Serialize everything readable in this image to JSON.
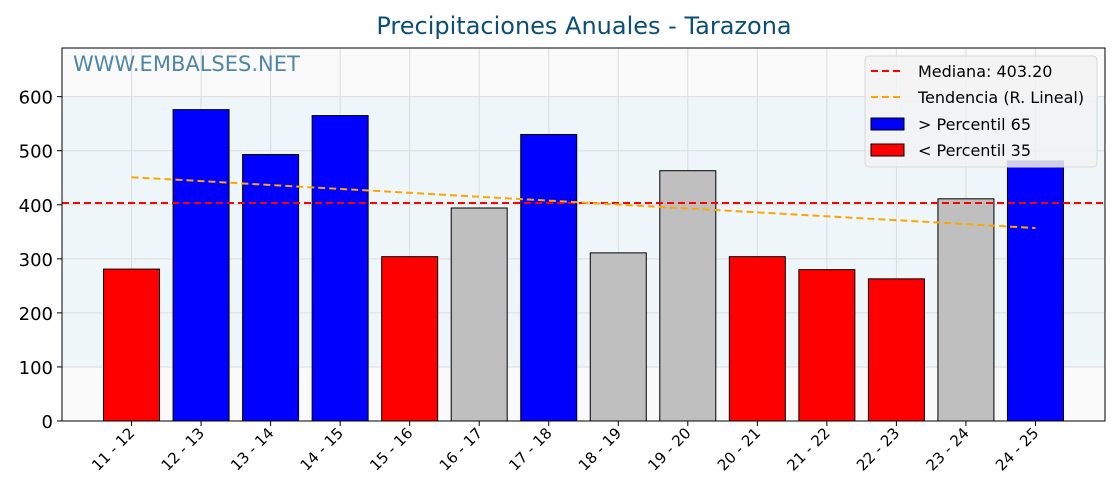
{
  "chart_data": {
    "type": "bar",
    "title": "Precipitaciones Anuales - Tarazona",
    "watermark": "WWW.EMBALSES.NET",
    "xlabel": "",
    "ylabel": "",
    "ylim": [
      0,
      690
    ],
    "yticks": [
      0,
      100,
      200,
      300,
      400,
      500,
      600
    ],
    "categories": [
      "11 - 12",
      "12 - 13",
      "13 - 14",
      "14 - 15",
      "15 - 16",
      "16 - 17",
      "17 - 18",
      "18 - 19",
      "19 - 20",
      "20 - 21",
      "21 - 22",
      "22 - 23",
      "23 - 24",
      "24 - 25"
    ],
    "values": [
      281,
      576,
      493,
      565,
      304,
      394,
      530,
      311,
      463,
      304,
      280,
      263,
      411,
      481
    ],
    "classes": [
      "low",
      "high",
      "high",
      "high",
      "low",
      "mid",
      "high",
      "mid",
      "mid",
      "low",
      "low",
      "low",
      "mid",
      "high"
    ],
    "median": 403.2,
    "trend": [
      451,
      357
    ],
    "colors": {
      "high": "#0000ff",
      "low": "#ff0000",
      "mid": "#bfbfbf",
      "median": "#ff0000",
      "trend": "#ffa500",
      "title": "#0b4f79",
      "watermark": "#4f86a8"
    },
    "legend": {
      "position": "top-right",
      "items": [
        "Mediana: 403.20",
        "Tendencia (R. Lineal)",
        " > Percentil 65",
        " < Percentil 35"
      ]
    },
    "grid": true
  }
}
